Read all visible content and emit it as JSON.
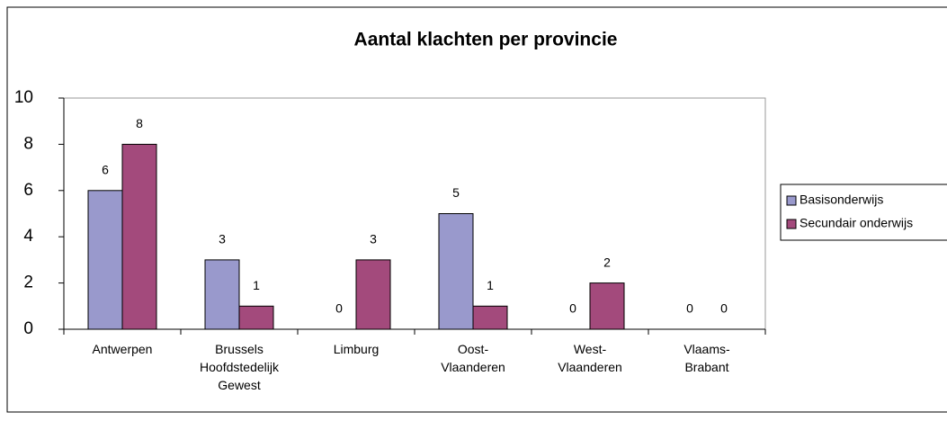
{
  "chart_data": {
    "type": "bar",
    "title": "Aantal klachten per provincie",
    "categories": [
      "Antwerpen",
      "Brussels Hoofdstedelijk Gewest",
      "Limburg",
      "Oost-Vlaanderen",
      "West-Vlaanderen",
      "Vlaams-Brabant"
    ],
    "series": [
      {
        "name": "Basisonderwijs",
        "color": "#9999cc",
        "values": [
          6,
          3,
          0,
          5,
          0,
          0
        ]
      },
      {
        "name": "Secundair onderwijs",
        "color": "#a34a7c",
        "values": [
          8,
          1,
          3,
          1,
          2,
          0
        ]
      }
    ],
    "ylim": [
      0,
      10
    ],
    "yticks": [
      0,
      2,
      4,
      6,
      8,
      10
    ],
    "grid": false,
    "legend": "right"
  }
}
